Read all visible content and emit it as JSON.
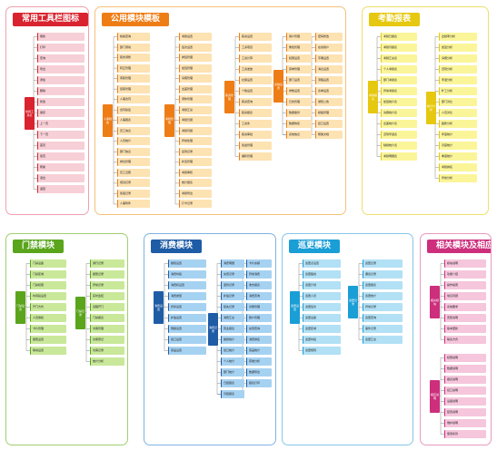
{
  "panels": [
    {
      "id": "p1",
      "title": "常用工具栏图标",
      "color": "#d9232e",
      "light": "#f7cfd6",
      "border": "#f0a0ae",
      "cats": [
        {
          "label": "常用工具栏",
          "items": [
            "刷新",
            "打印",
            "查询",
            "导出",
            "添加",
            "删除",
            "修改",
            "保存",
            "上一页",
            "下一页",
            "首页",
            "尾页",
            "帮助",
            "退出",
            "返回"
          ]
        }
      ]
    },
    {
      "id": "p2",
      "title": "公用模块模板",
      "color": "#ef7d16",
      "light": "#fde2b2",
      "border": "#f5c07a",
      "cats": [
        {
          "label": "人事档案",
          "items": [
            "档案查询",
            "部门调动",
            "职务调整",
            "转正管理",
            "离职管理",
            "复职管理",
            "人事合同",
            "合同续签",
            "人事报表",
            "员工信息",
            "人员统计",
            "部门信息",
            "岗位管理",
            "员工证照",
            "培训记录",
            "奖惩记录",
            "人事附件"
          ]
        },
        {
          "label": "考勤管理",
          "items": [
            "考勤设置",
            "班次设置",
            "排班管理",
            "加班管理",
            "请假管理",
            "出差管理",
            "调休管理",
            "考勤汇总",
            "考勤日报",
            "考勤月报",
            "异常处理",
            "签到记录",
            "补签管理",
            "考勤审核",
            "统计报表",
            "考勤导出",
            "打卡记录"
          ]
        },
        {
          "label": "薪资管理",
          "items": [
            "薪资设置",
            "工资项目",
            "工资计算",
            "工资发放",
            "社保设置",
            "个税设置",
            "薪资查询",
            "薪资报表",
            "工资条",
            "薪资审批",
            "奖金管理",
            "福利管理"
          ]
        },
        {
          "label": "系统设置",
          "items": [
            "用户管理",
            "角色管理",
            "权限设置",
            "菜单管理",
            "部门设置",
            "参数设置",
            "日志管理",
            "数据备份",
            "数据恢复",
            "系统信息",
            "密码修改",
            "在线用户",
            "字典设置",
            "消息设置",
            "流程设置",
            "表单设置",
            "通知公告",
            "模板管理",
            "接口设置",
            "帮助文档"
          ]
        }
      ]
    },
    {
      "id": "p3",
      "title": "考勤报表",
      "color": "#e6c810",
      "light": "#fbf59a",
      "border": "#ece070",
      "cats": [
        {
          "label": "考勤报表",
          "items": [
            "考勤日报表",
            "考勤月报表",
            "考勤汇总表",
            "个人考勤表",
            "部门考勤表",
            "异常考勤表",
            "加班统计表",
            "请假统计表",
            "出差统计表",
            "迟到早退表",
            "缺勤统计表",
            "考勤明细表"
          ]
        },
        {
          "label": "统计分析",
          "items": [
            "出勤率分析",
            "加班分析",
            "请假分析",
            "迟到分析",
            "早退分析",
            "旷工分析",
            "部门对比",
            "人员对比",
            "趋势分析",
            "年度统计",
            "月度统计",
            "季度统计",
            "考勤排名",
            "异常分析"
          ]
        }
      ]
    },
    {
      "id": "p4",
      "title": "门禁模块",
      "color": "#5aa51c",
      "light": "#c9e89a",
      "border": "#9fcf70",
      "cats": [
        {
          "label": "门禁设置",
          "items": [
            "门禁设备",
            "门禁区域",
            "门禁权限",
            "时间段设置",
            "开门方式",
            "人员授权",
            "卡片管理",
            "报警设置",
            "联动设置"
          ]
        },
        {
          "label": "门禁记录",
          "items": [
            "通行记录",
            "报警记录",
            "异常记录",
            "实时监控",
            "远程开门",
            "门禁报表",
            "访客管理",
            "访客登记",
            "访客记录",
            "统计分析"
          ]
        }
      ]
    },
    {
      "id": "p5",
      "title": "消费模块",
      "color": "#1f5ca6",
      "light": "#a6d2f2",
      "border": "#7fb3e2",
      "cats": [
        {
          "label": "消费设置",
          "items": [
            "餐别设置",
            "消费时段",
            "消费机设置",
            "消费类型",
            "折扣设置",
            "补贴设置",
            "限额设置",
            "窗口设置",
            "菜品设置"
          ]
        },
        {
          "label": "消费记录",
          "items": [
            "消费明细",
            "充值记录",
            "退款记录",
            "补贴记录",
            "挂失记录",
            "消费汇总",
            "营业报表",
            "餐别统计",
            "窗口统计",
            "个人统计",
            "部门统计",
            "日结报表",
            "月结报表",
            "卡片余额",
            "异常消费",
            "收支报表",
            "消费查询",
            "对账管理",
            "账户管理",
            "充值查询",
            "消费排名",
            "菜品统计",
            "营收分析",
            "数据导出",
            "报表打印"
          ]
        }
      ]
    },
    {
      "id": "p6",
      "title": "巡更模块",
      "color": "#1a9ed6",
      "light": "#b2e0f5",
      "border": "#86c6e8",
      "cats": [
        {
          "label": "巡更设置",
          "items": [
            "巡更点设置",
            "巡更路线",
            "巡更计划",
            "巡更人员",
            "巡更班次",
            "巡更设备",
            "巡更区域",
            "巡更时段",
            "巡更规则"
          ]
        },
        {
          "label": "巡更记录",
          "items": [
            "巡更记录",
            "漏巡记录",
            "巡更报表",
            "巡更统计",
            "异常记录",
            "巡更查询",
            "事件记录",
            "巡更汇总"
          ]
        }
      ]
    },
    {
      "id": "p7",
      "title": "相关模块及相应说明",
      "color": "#cd2f7d",
      "light": "#f5c6dc",
      "border": "#e89abd",
      "cats": [
        {
          "label": "相关模块",
          "items": [
            "模块说明",
            "功能介绍",
            "操作指南",
            "常见问题",
            "系统要求",
            "安装说明",
            "版本更新",
            "联系方式"
          ]
        },
        {
          "label": "相应说明",
          "items": [
            "权限说明",
            "数据说明",
            "报表说明",
            "接口说明",
            "设备说明",
            "配置说明",
            "维护说明",
            "使用条款"
          ]
        }
      ]
    }
  ]
}
